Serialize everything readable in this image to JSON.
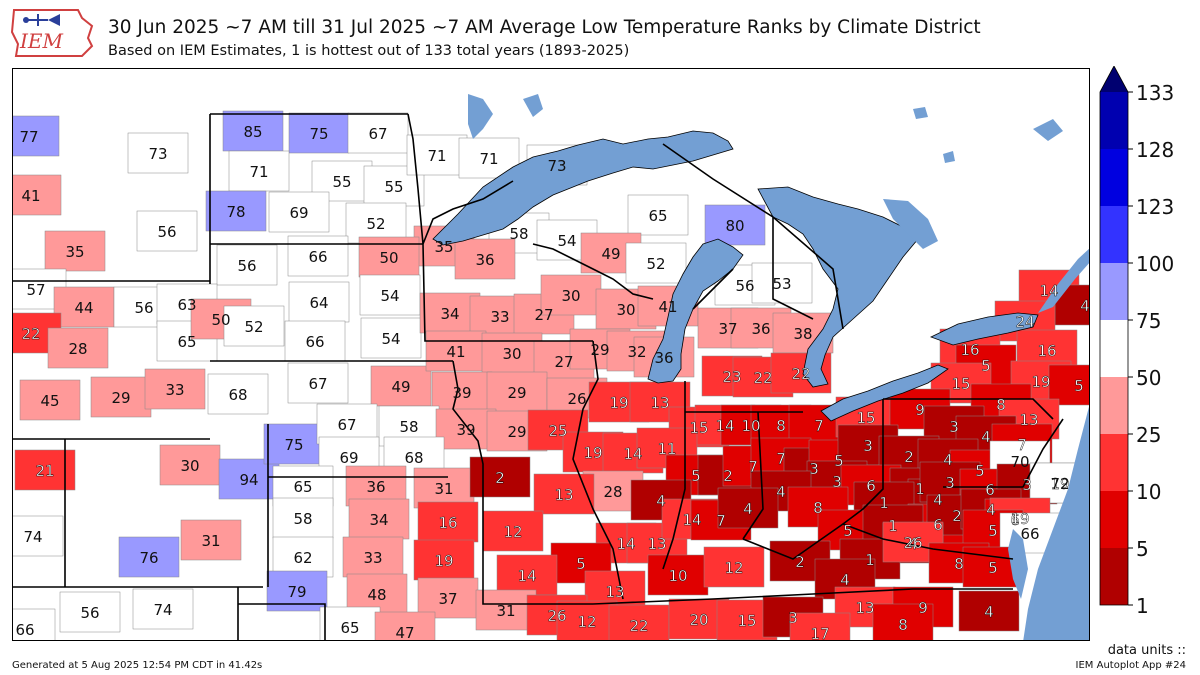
{
  "header": {
    "logo_text": "IEM",
    "title": "30 Jun 2025 ~7 AM till 31 Jul 2025 ~7 AM Average Low Temperature Ranks by Climate District",
    "subtitle": "Based on IEM Estimates, 1 is hottest out of 133 total years (1893-2025)"
  },
  "colorbar": {
    "tick_labels": [
      "1",
      "5",
      "10",
      "25",
      "50",
      "75",
      "100",
      "123",
      "128",
      "133"
    ],
    "colors": [
      "#b00000",
      "#e00000",
      "#ff3333",
      "#ff9999",
      "#ffffff",
      "#9999ff",
      "#3333ff",
      "#0000e0",
      "#0000b0",
      "#000070"
    ]
  },
  "colors": {
    "water": "#739fd3",
    "state_border": "#000000",
    "district_border": "#888888"
  },
  "district_ranks": [
    {
      "label": "77",
      "bin": 5
    },
    {
      "label": "73",
      "bin": 4
    },
    {
      "label": "41",
      "bin": 3
    },
    {
      "label": "56",
      "bin": 4
    },
    {
      "label": "35",
      "bin": 3
    },
    {
      "label": "85",
      "bin": 5
    },
    {
      "label": "75",
      "bin": 5
    },
    {
      "label": "67",
      "bin": 4
    },
    {
      "label": "71",
      "bin": 4
    },
    {
      "label": "55",
      "bin": 4
    },
    {
      "label": "55",
      "bin": 4
    },
    {
      "label": "78",
      "bin": 5
    },
    {
      "label": "69",
      "bin": 4
    },
    {
      "label": "52",
      "bin": 4
    },
    {
      "label": "71",
      "bin": 4
    },
    {
      "label": "71",
      "bin": 4
    },
    {
      "label": "73",
      "bin": 4
    },
    {
      "label": "65",
      "bin": 4
    },
    {
      "label": "80",
      "bin": 5
    },
    {
      "label": "58",
      "bin": 4
    },
    {
      "label": "54",
      "bin": 4
    },
    {
      "label": "49",
      "bin": 3
    },
    {
      "label": "52",
      "bin": 4
    },
    {
      "label": "35",
      "bin": 3
    },
    {
      "label": "36",
      "bin": 3
    },
    {
      "label": "56",
      "bin": 4
    },
    {
      "label": "66",
      "bin": 4
    },
    {
      "label": "50",
      "bin": 3
    },
    {
      "label": "57",
      "bin": 4
    },
    {
      "label": "44",
      "bin": 3
    },
    {
      "label": "56",
      "bin": 4
    },
    {
      "label": "63",
      "bin": 4
    },
    {
      "label": "22",
      "bin": 2
    },
    {
      "label": "28",
      "bin": 3
    },
    {
      "label": "65",
      "bin": 4
    },
    {
      "label": "50",
      "bin": 3
    },
    {
      "label": "52",
      "bin": 4
    },
    {
      "label": "64",
      "bin": 4
    },
    {
      "label": "54",
      "bin": 4
    },
    {
      "label": "66",
      "bin": 4
    },
    {
      "label": "54",
      "bin": 4
    },
    {
      "label": "34",
      "bin": 3
    },
    {
      "label": "33",
      "bin": 3
    },
    {
      "label": "27",
      "bin": 3
    },
    {
      "label": "30",
      "bin": 3
    },
    {
      "label": "30",
      "bin": 3
    },
    {
      "label": "41",
      "bin": 3
    },
    {
      "label": "56",
      "bin": 4
    },
    {
      "label": "53",
      "bin": 4
    },
    {
      "label": "37",
      "bin": 3
    },
    {
      "label": "36",
      "bin": 3
    },
    {
      "label": "38",
      "bin": 3
    },
    {
      "label": "14",
      "bin": 2
    },
    {
      "label": "4",
      "bin": 0
    },
    {
      "label": "24",
      "bin": 2
    },
    {
      "label": "16",
      "bin": 2
    },
    {
      "label": "45",
      "bin": 3
    },
    {
      "label": "29",
      "bin": 3
    },
    {
      "label": "33",
      "bin": 3
    },
    {
      "label": "68",
      "bin": 4
    },
    {
      "label": "67",
      "bin": 4
    },
    {
      "label": "49",
      "bin": 3
    },
    {
      "label": "41",
      "bin": 3
    },
    {
      "label": "30",
      "bin": 3
    },
    {
      "label": "27",
      "bin": 3
    },
    {
      "label": "29",
      "bin": 3
    },
    {
      "label": "32",
      "bin": 3
    },
    {
      "label": "36",
      "bin": 3
    },
    {
      "label": "23",
      "bin": 2
    },
    {
      "label": "22",
      "bin": 2
    },
    {
      "label": "22",
      "bin": 2
    },
    {
      "label": "16",
      "bin": 2
    },
    {
      "label": "5",
      "bin": 1
    },
    {
      "label": "15",
      "bin": 2
    },
    {
      "label": "19",
      "bin": 2
    },
    {
      "label": "5",
      "bin": 1
    },
    {
      "label": "39",
      "bin": 3
    },
    {
      "label": "29",
      "bin": 3
    },
    {
      "label": "26",
      "bin": 3
    },
    {
      "label": "19",
      "bin": 2
    },
    {
      "label": "13",
      "bin": 2
    },
    {
      "label": "15",
      "bin": 2
    },
    {
      "label": "14",
      "bin": 2
    },
    {
      "label": "10",
      "bin": 1
    },
    {
      "label": "8",
      "bin": 1
    },
    {
      "label": "7",
      "bin": 1
    },
    {
      "label": "15",
      "bin": 2
    },
    {
      "label": "9",
      "bin": 1
    },
    {
      "label": "8",
      "bin": 1
    },
    {
      "label": "13",
      "bin": 2
    },
    {
      "label": "21",
      "bin": 2
    },
    {
      "label": "30",
      "bin": 3
    },
    {
      "label": "94",
      "bin": 5
    },
    {
      "label": "75",
      "bin": 5
    },
    {
      "label": "67",
      "bin": 4
    },
    {
      "label": "58",
      "bin": 4
    },
    {
      "label": "39",
      "bin": 3
    },
    {
      "label": "29",
      "bin": 3
    },
    {
      "label": "25",
      "bin": 2
    },
    {
      "label": "69",
      "bin": 4
    },
    {
      "label": "68",
      "bin": 4
    },
    {
      "label": "19",
      "bin": 2
    },
    {
      "label": "14",
      "bin": 2
    },
    {
      "label": "11",
      "bin": 2
    },
    {
      "label": "5",
      "bin": 1
    },
    {
      "label": "2",
      "bin": 0
    },
    {
      "label": "7",
      "bin": 1
    },
    {
      "label": "7",
      "bin": 1
    },
    {
      "label": "3",
      "bin": 0
    },
    {
      "label": "5",
      "bin": 1
    },
    {
      "label": "3",
      "bin": 0
    },
    {
      "label": "3",
      "bin": 0
    },
    {
      "label": "4",
      "bin": 0
    },
    {
      "label": "7",
      "bin": 1
    },
    {
      "label": "2",
      "bin": 0
    },
    {
      "label": "4",
      "bin": 0
    },
    {
      "label": "5",
      "bin": 1
    },
    {
      "label": "70",
      "bin": 4
    },
    {
      "label": "65",
      "bin": 4
    },
    {
      "label": "36",
      "bin": 3
    },
    {
      "label": "31",
      "bin": 3
    },
    {
      "label": "2",
      "bin": 0
    },
    {
      "label": "3",
      "bin": 0
    },
    {
      "label": "6",
      "bin": 1
    },
    {
      "label": "1",
      "bin": 0
    },
    {
      "label": "4",
      "bin": 0
    },
    {
      "label": "3",
      "bin": 0
    },
    {
      "label": "6",
      "bin": 1
    },
    {
      "label": "3",
      "bin": 0
    },
    {
      "label": "19",
      "bin": 2
    },
    {
      "label": "72",
      "bin": 4
    },
    {
      "label": "58",
      "bin": 4
    },
    {
      "label": "34",
      "bin": 3
    },
    {
      "label": "16",
      "bin": 2
    },
    {
      "label": "28",
      "bin": 3
    },
    {
      "label": "13",
      "bin": 2
    },
    {
      "label": "4",
      "bin": 0
    },
    {
      "label": "4",
      "bin": 0
    },
    {
      "label": "8",
      "bin": 1
    },
    {
      "label": "1",
      "bin": 0
    },
    {
      "label": "6",
      "bin": 1
    },
    {
      "label": "2",
      "bin": 0
    },
    {
      "label": "4",
      "bin": 0
    },
    {
      "label": "6",
      "bin": 1
    },
    {
      "label": "19",
      "bin": 2
    },
    {
      "label": "74",
      "bin": 4
    },
    {
      "label": "31",
      "bin": 3
    },
    {
      "label": "12",
      "bin": 2
    },
    {
      "label": "14",
      "bin": 2
    },
    {
      "label": "13",
      "bin": 2
    },
    {
      "label": "14",
      "bin": 2
    },
    {
      "label": "7",
      "bin": 1
    },
    {
      "label": "4",
      "bin": 0
    },
    {
      "label": "5",
      "bin": 1
    },
    {
      "label": "1",
      "bin": 0
    },
    {
      "label": "4",
      "bin": 0
    },
    {
      "label": "5",
      "bin": 1
    },
    {
      "label": "66",
      "bin": 4
    },
    {
      "label": "76",
      "bin": 5
    },
    {
      "label": "62",
      "bin": 4
    },
    {
      "label": "33",
      "bin": 3
    },
    {
      "label": "19",
      "bin": 2
    },
    {
      "label": "5",
      "bin": 1
    },
    {
      "label": "2",
      "bin": 0
    },
    {
      "label": "1",
      "bin": 0
    },
    {
      "label": "26",
      "bin": 2
    },
    {
      "label": "14",
      "bin": 2
    },
    {
      "label": "10",
      "bin": 1
    },
    {
      "label": "12",
      "bin": 2
    },
    {
      "label": "8",
      "bin": 1
    },
    {
      "label": "5",
      "bin": 1
    },
    {
      "label": "4",
      "bin": 0
    },
    {
      "label": "56",
      "bin": 4
    },
    {
      "label": "74",
      "bin": 4
    },
    {
      "label": "79",
      "bin": 5
    },
    {
      "label": "48",
      "bin": 3
    },
    {
      "label": "37",
      "bin": 3
    },
    {
      "label": "13",
      "bin": 2
    },
    {
      "label": "31",
      "bin": 3
    },
    {
      "label": "26",
      "bin": 2
    },
    {
      "label": "12",
      "bin": 2
    },
    {
      "label": "22",
      "bin": 2
    },
    {
      "label": "20",
      "bin": 2
    },
    {
      "label": "15",
      "bin": 2
    },
    {
      "label": "3",
      "bin": 0
    },
    {
      "label": "13",
      "bin": 2
    },
    {
      "label": "9",
      "bin": 1
    },
    {
      "label": "4",
      "bin": 0
    },
    {
      "label": "66",
      "bin": 4
    },
    {
      "label": "65",
      "bin": 4
    },
    {
      "label": "47",
      "bin": 3
    },
    {
      "label": "17",
      "bin": 2
    },
    {
      "label": "8",
      "bin": 1
    }
  ],
  "footer": {
    "data_units": "data units ::",
    "generated": "Generated at 5 Aug 2025 12:54 PM CDT in 41.42s",
    "app": "IEM Autoplot App #24"
  }
}
